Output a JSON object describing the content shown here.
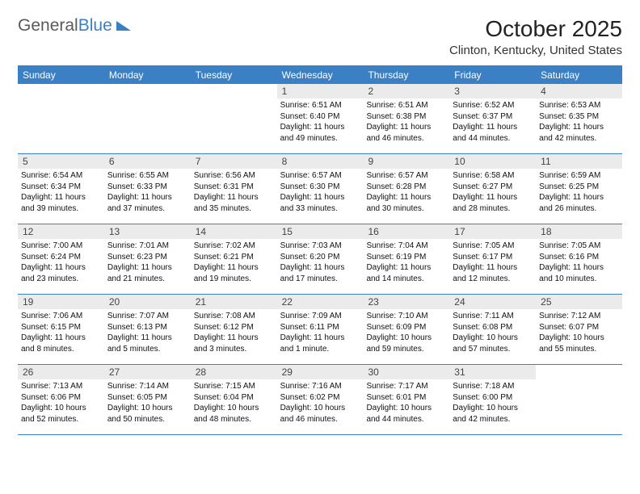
{
  "logo": {
    "text1": "General",
    "text2": "Blue"
  },
  "title": "October 2025",
  "location": "Clinton, Kentucky, United States",
  "colors": {
    "accent": "#3b7fc4",
    "daynum_bg": "#ebebeb",
    "text": "#111111",
    "bg": "#ffffff"
  },
  "weekdays": [
    "Sunday",
    "Monday",
    "Tuesday",
    "Wednesday",
    "Thursday",
    "Friday",
    "Saturday"
  ],
  "weeks": [
    [
      null,
      null,
      null,
      {
        "n": "1",
        "sr": "6:51 AM",
        "ss": "6:40 PM",
        "dl": "11 hours and 49 minutes."
      },
      {
        "n": "2",
        "sr": "6:51 AM",
        "ss": "6:38 PM",
        "dl": "11 hours and 46 minutes."
      },
      {
        "n": "3",
        "sr": "6:52 AM",
        "ss": "6:37 PM",
        "dl": "11 hours and 44 minutes."
      },
      {
        "n": "4",
        "sr": "6:53 AM",
        "ss": "6:35 PM",
        "dl": "11 hours and 42 minutes."
      }
    ],
    [
      {
        "n": "5",
        "sr": "6:54 AM",
        "ss": "6:34 PM",
        "dl": "11 hours and 39 minutes."
      },
      {
        "n": "6",
        "sr": "6:55 AM",
        "ss": "6:33 PM",
        "dl": "11 hours and 37 minutes."
      },
      {
        "n": "7",
        "sr": "6:56 AM",
        "ss": "6:31 PM",
        "dl": "11 hours and 35 minutes."
      },
      {
        "n": "8",
        "sr": "6:57 AM",
        "ss": "6:30 PM",
        "dl": "11 hours and 33 minutes."
      },
      {
        "n": "9",
        "sr": "6:57 AM",
        "ss": "6:28 PM",
        "dl": "11 hours and 30 minutes."
      },
      {
        "n": "10",
        "sr": "6:58 AM",
        "ss": "6:27 PM",
        "dl": "11 hours and 28 minutes."
      },
      {
        "n": "11",
        "sr": "6:59 AM",
        "ss": "6:25 PM",
        "dl": "11 hours and 26 minutes."
      }
    ],
    [
      {
        "n": "12",
        "sr": "7:00 AM",
        "ss": "6:24 PM",
        "dl": "11 hours and 23 minutes."
      },
      {
        "n": "13",
        "sr": "7:01 AM",
        "ss": "6:23 PM",
        "dl": "11 hours and 21 minutes."
      },
      {
        "n": "14",
        "sr": "7:02 AM",
        "ss": "6:21 PM",
        "dl": "11 hours and 19 minutes."
      },
      {
        "n": "15",
        "sr": "7:03 AM",
        "ss": "6:20 PM",
        "dl": "11 hours and 17 minutes."
      },
      {
        "n": "16",
        "sr": "7:04 AM",
        "ss": "6:19 PM",
        "dl": "11 hours and 14 minutes."
      },
      {
        "n": "17",
        "sr": "7:05 AM",
        "ss": "6:17 PM",
        "dl": "11 hours and 12 minutes."
      },
      {
        "n": "18",
        "sr": "7:05 AM",
        "ss": "6:16 PM",
        "dl": "11 hours and 10 minutes."
      }
    ],
    [
      {
        "n": "19",
        "sr": "7:06 AM",
        "ss": "6:15 PM",
        "dl": "11 hours and 8 minutes."
      },
      {
        "n": "20",
        "sr": "7:07 AM",
        "ss": "6:13 PM",
        "dl": "11 hours and 5 minutes."
      },
      {
        "n": "21",
        "sr": "7:08 AM",
        "ss": "6:12 PM",
        "dl": "11 hours and 3 minutes."
      },
      {
        "n": "22",
        "sr": "7:09 AM",
        "ss": "6:11 PM",
        "dl": "11 hours and 1 minute."
      },
      {
        "n": "23",
        "sr": "7:10 AM",
        "ss": "6:09 PM",
        "dl": "10 hours and 59 minutes."
      },
      {
        "n": "24",
        "sr": "7:11 AM",
        "ss": "6:08 PM",
        "dl": "10 hours and 57 minutes."
      },
      {
        "n": "25",
        "sr": "7:12 AM",
        "ss": "6:07 PM",
        "dl": "10 hours and 55 minutes."
      }
    ],
    [
      {
        "n": "26",
        "sr": "7:13 AM",
        "ss": "6:06 PM",
        "dl": "10 hours and 52 minutes."
      },
      {
        "n": "27",
        "sr": "7:14 AM",
        "ss": "6:05 PM",
        "dl": "10 hours and 50 minutes."
      },
      {
        "n": "28",
        "sr": "7:15 AM",
        "ss": "6:04 PM",
        "dl": "10 hours and 48 minutes."
      },
      {
        "n": "29",
        "sr": "7:16 AM",
        "ss": "6:02 PM",
        "dl": "10 hours and 46 minutes."
      },
      {
        "n": "30",
        "sr": "7:17 AM",
        "ss": "6:01 PM",
        "dl": "10 hours and 44 minutes."
      },
      {
        "n": "31",
        "sr": "7:18 AM",
        "ss": "6:00 PM",
        "dl": "10 hours and 42 minutes."
      },
      null
    ]
  ],
  "labels": {
    "sunrise": "Sunrise: ",
    "sunset": "Sunset: ",
    "daylight": "Daylight: "
  }
}
